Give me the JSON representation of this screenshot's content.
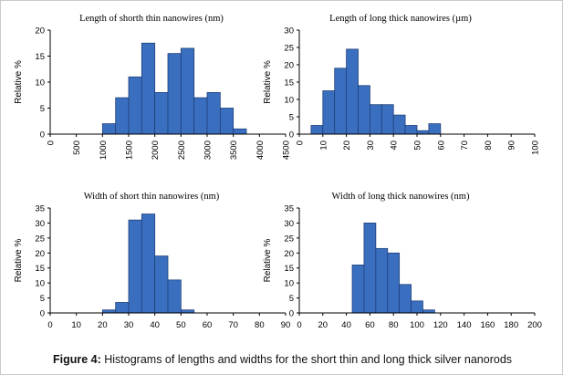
{
  "caption": {
    "label": "Figure 4:",
    "text": "Histograms of lengths and widths for the short thin and long thick silver nanorods"
  },
  "colors": {
    "bar_fill": "#3a6fc0",
    "bar_stroke": "#1f3f78",
    "axis": "#000000"
  },
  "chart_data": [
    {
      "type": "bar",
      "title": "Length of shorth thin nanowires (nm)",
      "xlabel": "",
      "ylabel": "Relative %",
      "ylim": [
        0,
        20
      ],
      "yticks": [
        0,
        5,
        10,
        15,
        20
      ],
      "xlim": [
        0,
        4500
      ],
      "xticks": [
        0,
        500,
        1000,
        1500,
        2000,
        2500,
        3000,
        3500,
        4000,
        4500
      ],
      "bin_width": 250,
      "x": [
        1000,
        1250,
        1500,
        1750,
        2000,
        2250,
        2500,
        2750,
        3000,
        3250,
        3500
      ],
      "values": [
        2,
        7,
        11,
        17.5,
        8,
        15.5,
        16.5,
        7,
        8,
        5,
        1
      ],
      "grid": false
    },
    {
      "type": "bar",
      "title": "Length of long thick nanowires (µm)",
      "xlabel": "",
      "ylabel": "Relative %",
      "ylim": [
        0,
        30
      ],
      "yticks": [
        0,
        5,
        10,
        15,
        20,
        25,
        30
      ],
      "xlim": [
        0,
        100
      ],
      "xticks": [
        0,
        10,
        20,
        30,
        40,
        50,
        60,
        70,
        80,
        90,
        100
      ],
      "bin_width": 5,
      "x": [
        5,
        10,
        15,
        20,
        25,
        30,
        35,
        40,
        45,
        50,
        55
      ],
      "values": [
        2.5,
        12.5,
        19,
        24.5,
        14,
        8.5,
        8.5,
        5.5,
        2.5,
        1,
        3
      ],
      "grid": false
    },
    {
      "type": "bar",
      "title": "Width of short thin nanowires (nm)",
      "xlabel": "",
      "ylabel": "Relative %",
      "ylim": [
        0,
        35
      ],
      "yticks": [
        0,
        5,
        10,
        15,
        20,
        25,
        30,
        35
      ],
      "xlim": [
        0,
        90
      ],
      "xticks": [
        0,
        10,
        20,
        30,
        40,
        50,
        60,
        70,
        80,
        90
      ],
      "bin_width": 5,
      "x": [
        20,
        25,
        30,
        35,
        40,
        45,
        50
      ],
      "values": [
        1,
        3.5,
        31,
        33,
        19,
        11,
        1
      ],
      "grid": false
    },
    {
      "type": "bar",
      "title": "Width of long thick nanowires (nm)",
      "xlabel": "",
      "ylabel": "Relative %",
      "ylim": [
        0,
        35
      ],
      "yticks": [
        0,
        5,
        10,
        15,
        20,
        25,
        30,
        35
      ],
      "xlim": [
        0,
        200
      ],
      "xticks": [
        0,
        20,
        40,
        60,
        80,
        100,
        120,
        140,
        160,
        180,
        200
      ],
      "bin_width": 10,
      "x": [
        45,
        55,
        65,
        75,
        85,
        95,
        105
      ],
      "values": [
        16,
        30,
        21.5,
        20,
        9.5,
        4,
        1
      ],
      "grid": false
    }
  ]
}
